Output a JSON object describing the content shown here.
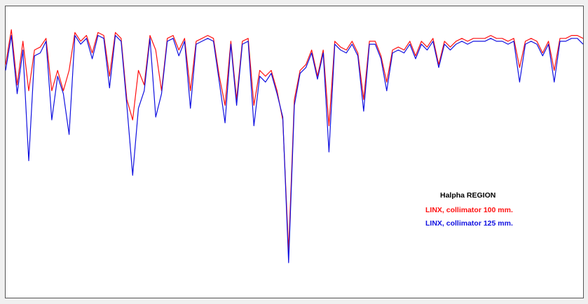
{
  "chart_data": {
    "type": "line",
    "title": "Halpha  REGION",
    "ylim": [
      0,
      100
    ],
    "series": [
      {
        "name": "LINX, collimator 100 mm.",
        "color": "#ff1010",
        "values": [
          80,
          92,
          73,
          88,
          71,
          85,
          86,
          89,
          71,
          78,
          71,
          78,
          91,
          88,
          90,
          84,
          91,
          90,
          76,
          91,
          89,
          68,
          61,
          78,
          73,
          90,
          85,
          71,
          89,
          90,
          85,
          89,
          71,
          88,
          89,
          90,
          89,
          76,
          66,
          88,
          68,
          88,
          89,
          66,
          78,
          76,
          78,
          71,
          61,
          16,
          68,
          78,
          80,
          85,
          76,
          85,
          59,
          88,
          86,
          85,
          88,
          84,
          68,
          88,
          88,
          83,
          74,
          85,
          86,
          85,
          88,
          83,
          88,
          86,
          89,
          80,
          88,
          86,
          88,
          89,
          88,
          89,
          89,
          89,
          90,
          89,
          89,
          88,
          89,
          79,
          88,
          89,
          88,
          84,
          88,
          78,
          89,
          89,
          90,
          90,
          89
        ]
      },
      {
        "name": "LINX, collimator 125 mm.",
        "color": "#1010e0",
        "values": [
          78,
          90,
          70,
          85,
          47,
          83,
          84,
          88,
          61,
          76,
          70,
          56,
          90,
          87,
          89,
          82,
          90,
          89,
          72,
          90,
          88,
          66,
          42,
          65,
          71,
          89,
          62,
          70,
          88,
          89,
          83,
          88,
          65,
          87,
          88,
          89,
          88,
          74,
          60,
          87,
          66,
          87,
          88,
          59,
          76,
          74,
          77,
          70,
          62,
          12,
          66,
          77,
          79,
          84,
          75,
          84,
          50,
          87,
          85,
          84,
          87,
          83,
          64,
          87,
          87,
          82,
          71,
          84,
          85,
          84,
          87,
          82,
          87,
          85,
          88,
          79,
          87,
          85,
          87,
          88,
          87,
          88,
          88,
          88,
          89,
          88,
          88,
          87,
          88,
          74,
          87,
          88,
          87,
          83,
          87,
          74,
          88,
          88,
          89,
          89,
          87
        ]
      }
    ]
  }
}
